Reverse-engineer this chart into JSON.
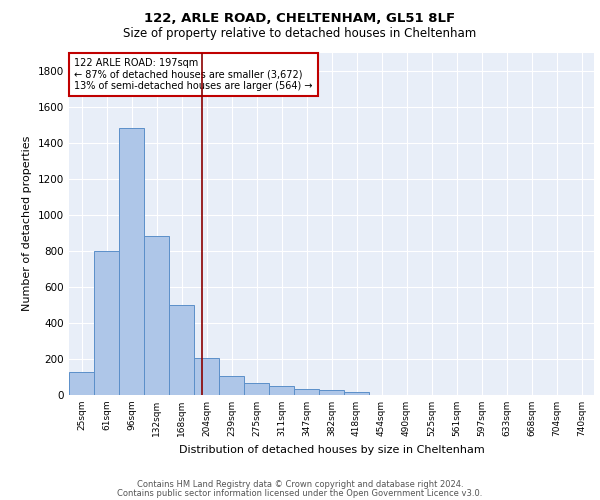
{
  "title1": "122, ARLE ROAD, CHELTENHAM, GL51 8LF",
  "title2": "Size of property relative to detached houses in Cheltenham",
  "xlabel": "Distribution of detached houses by size in Cheltenham",
  "ylabel": "Number of detached properties",
  "categories": [
    "25sqm",
    "61sqm",
    "96sqm",
    "132sqm",
    "168sqm",
    "204sqm",
    "239sqm",
    "275sqm",
    "311sqm",
    "347sqm",
    "382sqm",
    "418sqm",
    "454sqm",
    "490sqm",
    "525sqm",
    "561sqm",
    "597sqm",
    "633sqm",
    "668sqm",
    "704sqm",
    "740sqm"
  ],
  "values": [
    130,
    800,
    1480,
    880,
    500,
    205,
    105,
    65,
    48,
    35,
    25,
    15,
    0,
    0,
    0,
    0,
    0,
    0,
    0,
    0,
    0
  ],
  "bar_color": "#aec6e8",
  "bar_edge_color": "#5b8fc9",
  "property_line_color": "#8b0000",
  "annotation_text": "122 ARLE ROAD: 197sqm\n← 87% of detached houses are smaller (3,672)\n13% of semi-detached houses are larger (564) →",
  "annotation_box_color": "white",
  "annotation_box_edge_color": "#c00000",
  "ylim": [
    0,
    1900
  ],
  "yticks": [
    0,
    200,
    400,
    600,
    800,
    1000,
    1200,
    1400,
    1600,
    1800
  ],
  "background_color": "#e8eef8",
  "grid_color": "white",
  "footer_line1": "Contains HM Land Registry data © Crown copyright and database right 2024.",
  "footer_line2": "Contains public sector information licensed under the Open Government Licence v3.0."
}
